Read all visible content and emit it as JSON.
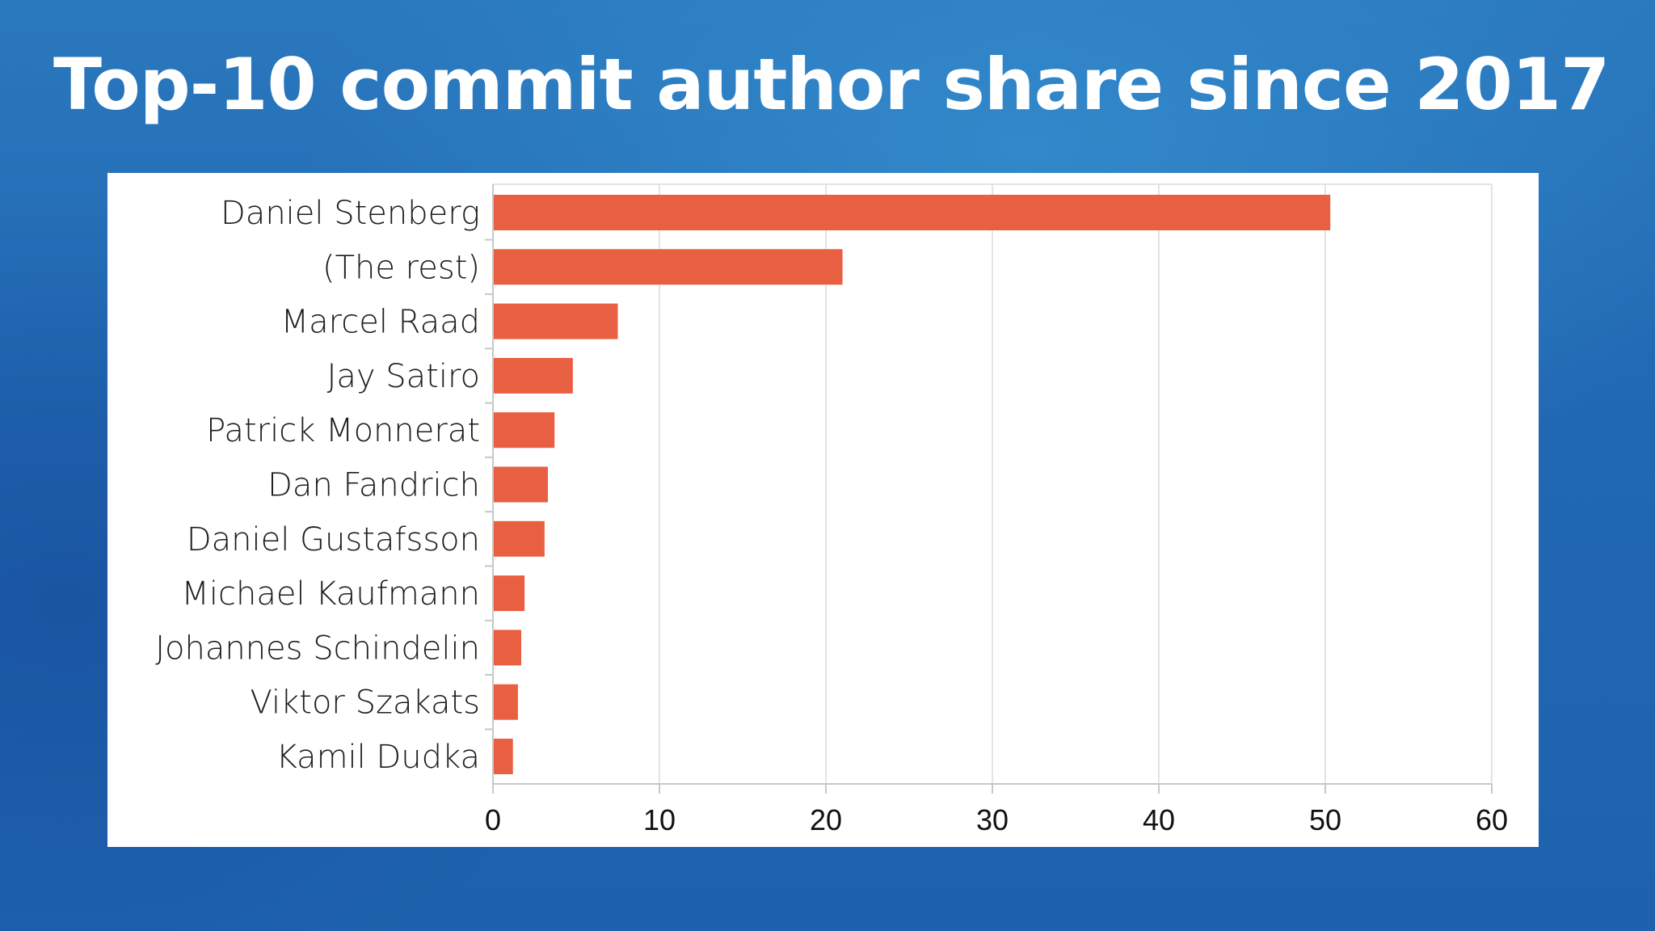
{
  "slide": {
    "title": "Top-10 commit author share since 2017"
  },
  "colors": {
    "background": "#2168b2",
    "bar": "#e95f41",
    "panel": "#ffffff"
  },
  "chart_data": {
    "type": "bar",
    "orientation": "horizontal",
    "title": "",
    "xlabel": "",
    "ylabel": "",
    "categories": [
      "Daniel Stenberg",
      "(The rest)",
      "Marcel Raad",
      "Jay Satiro",
      "Patrick Monnerat",
      "Dan Fandrich",
      "Daniel Gustafsson",
      "Michael Kaufmann",
      "Johannes Schindelin",
      "Viktor Szakats",
      "Kamil Dudka"
    ],
    "values": [
      50.3,
      21.0,
      7.5,
      4.8,
      3.7,
      3.3,
      3.1,
      1.9,
      1.7,
      1.5,
      1.2
    ],
    "xlim": [
      0,
      60
    ],
    "xticks": [
      0,
      10,
      20,
      30,
      40,
      50,
      60
    ],
    "grid": true,
    "legend": "none"
  }
}
